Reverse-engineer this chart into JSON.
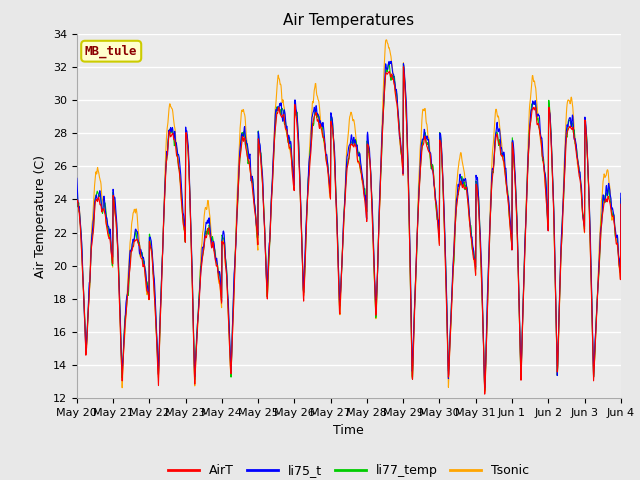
{
  "title": "Air Temperatures",
  "xlabel": "Time",
  "ylabel": "Air Temperature (C)",
  "ylim": [
    12,
    34
  ],
  "yticks": [
    12,
    14,
    16,
    18,
    20,
    22,
    24,
    26,
    28,
    30,
    32,
    34
  ],
  "xtick_labels": [
    "May 20",
    "May 21",
    "May 22",
    "May 23",
    "May 24",
    "May 25",
    "May 26",
    "May 27",
    "May 28",
    "May 29",
    "May 30",
    "May 31",
    "Jun 1",
    "Jun 2",
    "Jun 3",
    "Jun 4"
  ],
  "annotation_text": "MB_tule",
  "annotation_color": "#8B0000",
  "annotation_bg": "#FFFFCC",
  "annotation_border": "#CCCC00",
  "legend_labels": [
    "AirT",
    "li75_t",
    "li77_temp",
    "Tsonic"
  ],
  "line_colors": [
    "#FF0000",
    "#0000FF",
    "#00CC00",
    "#FFA500"
  ],
  "fig_bg_color": "#E8E8E8",
  "plot_bg_color": "#EBEBEB",
  "grid_color": "#FFFFFF",
  "title_fontsize": 11,
  "axis_label_fontsize": 9,
  "tick_fontsize": 8
}
